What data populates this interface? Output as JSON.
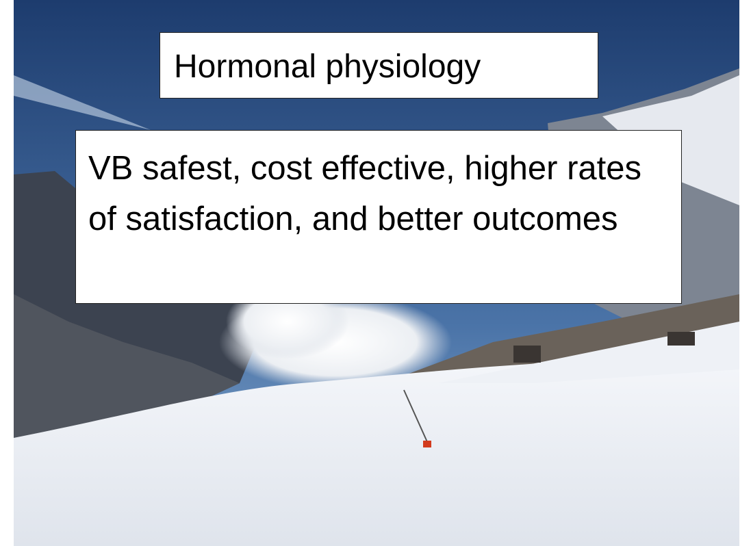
{
  "title": "Hormonal physiology",
  "body": "VB safest, cost effective, higher rates of satisfaction, and better outcomes"
}
